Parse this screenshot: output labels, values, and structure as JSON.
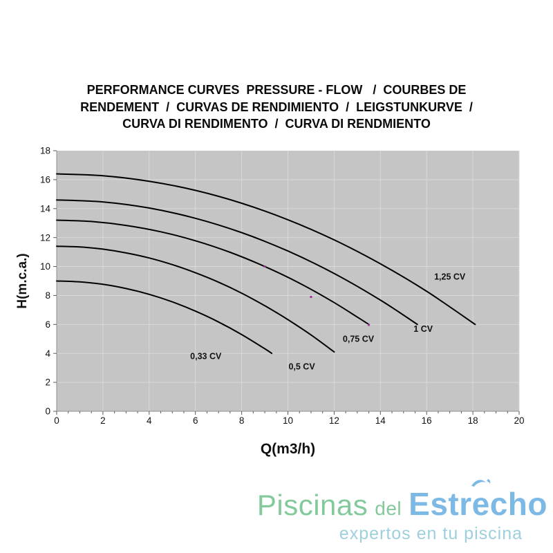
{
  "header": {
    "lines": [
      "PERFORMANCE CURVES  PRESSURE - FLOW   /  COURBES DE",
      "RENDEMENT  /  CURVAS DE RENDIMIENTO  /  LEIGSTUNKURVE  /",
      "CURVA DI RENDIMENTO  /  CURVA DI RENDMIENTO"
    ]
  },
  "chart_data": {
    "type": "line",
    "title": "",
    "xlabel": "Q(m3/h)",
    "ylabel": "H(m.c.a.)",
    "xlim": [
      0,
      20
    ],
    "ylim": [
      0,
      18
    ],
    "x_ticks": [
      0,
      2,
      4,
      6,
      8,
      10,
      12,
      14,
      16,
      18,
      20
    ],
    "y_ticks": [
      0,
      2,
      4,
      6,
      8,
      10,
      12,
      14,
      16,
      18
    ],
    "x_minor_step": 0.5,
    "grid": true,
    "legend_position": "inline-curve-labels",
    "colors": {
      "plot_bg": "#c5c5c5",
      "grid": "#d9d9d9",
      "axis": "#8f8f8f",
      "tick": "#5a5a5a",
      "curve": "#000000",
      "marker": "#993399",
      "text": "#111111"
    },
    "series": [
      {
        "name": "0,33 CV",
        "label_at": {
          "q": 6.45,
          "h": 3.6
        },
        "points": [
          [
            0,
            9.0
          ],
          [
            1,
            8.94
          ],
          [
            2,
            8.77
          ],
          [
            3,
            8.48
          ],
          [
            4,
            8.08
          ],
          [
            5,
            7.56
          ],
          [
            6,
            6.92
          ],
          [
            7,
            6.17
          ],
          [
            8,
            5.3
          ],
          [
            9,
            4.32
          ],
          [
            9.3,
            4.0
          ]
        ]
      },
      {
        "name": "0,5 CV",
        "label_at": {
          "q": 10.6,
          "h": 2.9
        },
        "points": [
          [
            0,
            11.4
          ],
          [
            1,
            11.35
          ],
          [
            2,
            11.2
          ],
          [
            3,
            10.94
          ],
          [
            4,
            10.59
          ],
          [
            5,
            10.13
          ],
          [
            6,
            9.57
          ],
          [
            7,
            8.92
          ],
          [
            8,
            8.16
          ],
          [
            9,
            7.29
          ],
          [
            10,
            6.33
          ],
          [
            11,
            5.27
          ],
          [
            12,
            4.1
          ]
        ]
      },
      {
        "name": "0,75 CV",
        "label_at": {
          "q": 13.05,
          "h": 4.8
        },
        "points": [
          [
            0,
            13.2
          ],
          [
            1.5,
            13.11
          ],
          [
            3,
            12.84
          ],
          [
            4.5,
            12.4
          ],
          [
            6,
            11.78
          ],
          [
            7.5,
            10.98
          ],
          [
            9,
            10.0
          ],
          [
            10.5,
            8.85
          ],
          [
            12,
            7.51
          ],
          [
            13.5,
            6.0
          ]
        ]
      },
      {
        "name": "1 CV",
        "label_at": {
          "q": 15.85,
          "h": 5.5
        },
        "points": [
          [
            0,
            14.6
          ],
          [
            2,
            14.46
          ],
          [
            4,
            14.04
          ],
          [
            6,
            13.33
          ],
          [
            8,
            12.34
          ],
          [
            10,
            11.07
          ],
          [
            12,
            9.52
          ],
          [
            14,
            7.68
          ],
          [
            15.6,
            6.0
          ]
        ]
      },
      {
        "name": "1,25 CV",
        "label_at": {
          "q": 17.0,
          "h": 9.1
        },
        "points": [
          [
            0,
            16.4
          ],
          [
            2,
            16.27
          ],
          [
            4,
            15.89
          ],
          [
            6,
            15.26
          ],
          [
            8,
            14.37
          ],
          [
            10,
            13.23
          ],
          [
            12,
            11.84
          ],
          [
            14,
            10.19
          ],
          [
            16,
            8.29
          ],
          [
            18.1,
            6.0
          ]
        ]
      }
    ],
    "markers": [
      [
        9,
        10.0
      ],
      [
        11,
        7.9
      ],
      [
        13.5,
        5.97
      ]
    ]
  },
  "logo": {
    "piscinas": "Piscinas",
    "del": "del",
    "estrecho": "Estrecho",
    "tagline": "expertos en tu piscina",
    "colors": {
      "green": "#84c99c",
      "blue": "#7db9e5",
      "tagline": "#9ecfdd"
    }
  }
}
